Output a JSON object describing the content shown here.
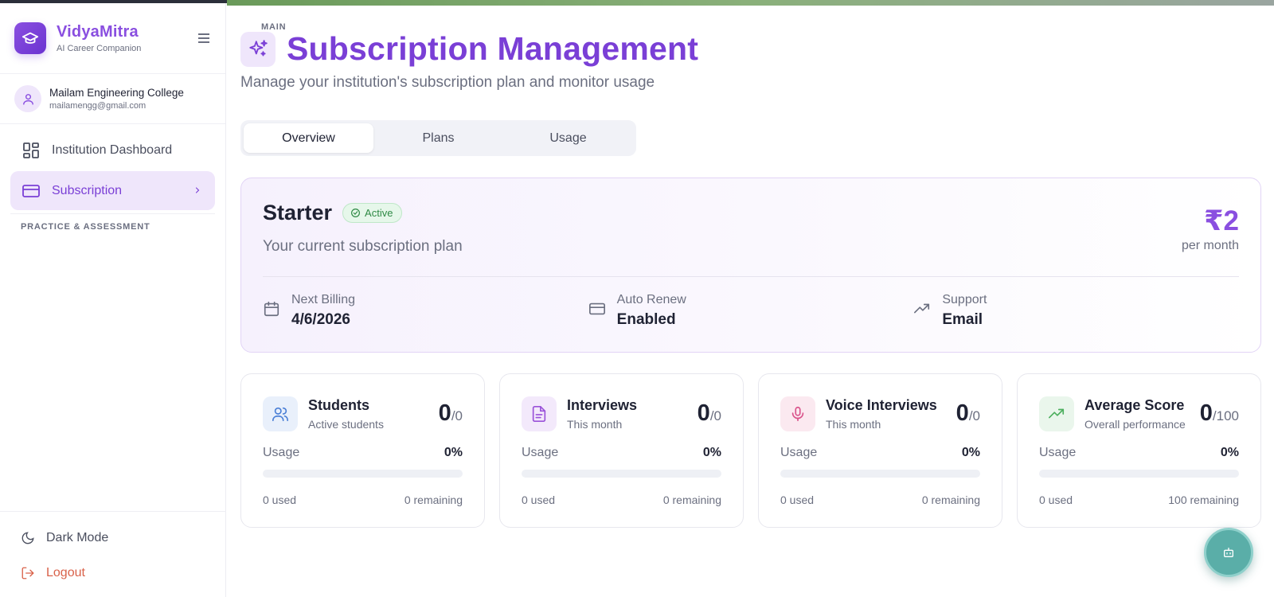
{
  "brand": {
    "name": "VidyaMitra",
    "tagline": "AI Career Companion"
  },
  "profile": {
    "name": "Mailam Engineering College",
    "email": "mailamengg@gmail.com"
  },
  "sidebar": {
    "section_main": "MAIN",
    "items": [
      {
        "label": "Institution Dashboard",
        "icon": "dashboard-grid-icon"
      },
      {
        "label": "Subscription",
        "icon": "credit-card-icon",
        "active": true
      }
    ],
    "section_practice": "PRACTICE & ASSESSMENT",
    "dark_mode": "Dark Mode",
    "logout": "Logout"
  },
  "page": {
    "title": "Subscription Management",
    "subtitle": "Manage your institution's subscription plan and monitor usage"
  },
  "tabs": [
    {
      "label": "Overview",
      "active": true
    },
    {
      "label": "Plans"
    },
    {
      "label": "Usage"
    }
  ],
  "plan": {
    "name": "Starter",
    "status": "Active",
    "description": "Your current subscription plan",
    "price": "₹2",
    "price_unit": "per month",
    "meta": [
      {
        "label": "Next Billing",
        "value": "4/6/2026",
        "icon": "calendar-icon"
      },
      {
        "label": "Auto Renew",
        "value": "Enabled",
        "icon": "credit-card-icon"
      },
      {
        "label": "Support",
        "value": "Email",
        "icon": "trending-up-icon"
      }
    ]
  },
  "stats": [
    {
      "title": "Students",
      "subtitle": "Active students",
      "count": "0",
      "limit": "/0",
      "usage_label": "Usage",
      "usage_pct": "0%",
      "usage_fraction": 0,
      "used": "0 used",
      "remaining": "0 remaining",
      "icon": "users-icon",
      "icon_bg": "#e9f0fb",
      "icon_color": "#4a7fd6"
    },
    {
      "title": "Interviews",
      "subtitle": "This month",
      "count": "0",
      "limit": "/0",
      "usage_label": "Usage",
      "usage_pct": "0%",
      "usage_fraction": 0,
      "used": "0 used",
      "remaining": "0 remaining",
      "icon": "document-icon",
      "icon_bg": "#f3e9fb",
      "icon_color": "#9a52d9"
    },
    {
      "title": "Voice Interviews",
      "subtitle": "This month",
      "count": "0",
      "limit": "/0",
      "usage_label": "Usage",
      "usage_pct": "0%",
      "usage_fraction": 0,
      "used": "0 used",
      "remaining": "0 remaining",
      "icon": "microphone-icon",
      "icon_bg": "#fbe9f0",
      "icon_color": "#d9528a"
    },
    {
      "title": "Average Score",
      "subtitle": "Overall performance",
      "count": "0",
      "limit": "/100",
      "usage_label": "Usage",
      "usage_pct": "0%",
      "usage_fraction": 0,
      "used": "0 used",
      "remaining": "100 remaining",
      "icon": "trending-up-icon",
      "icon_bg": "#eaf6ec",
      "icon_color": "#4caf5e"
    }
  ],
  "colors": {
    "accent": "#7a3fd6",
    "brand": "#8a4fe0",
    "success": "#2f8a45",
    "danger": "#d9624a",
    "fab": "#5aaea8"
  },
  "fab": {
    "icon": "bot-icon"
  }
}
